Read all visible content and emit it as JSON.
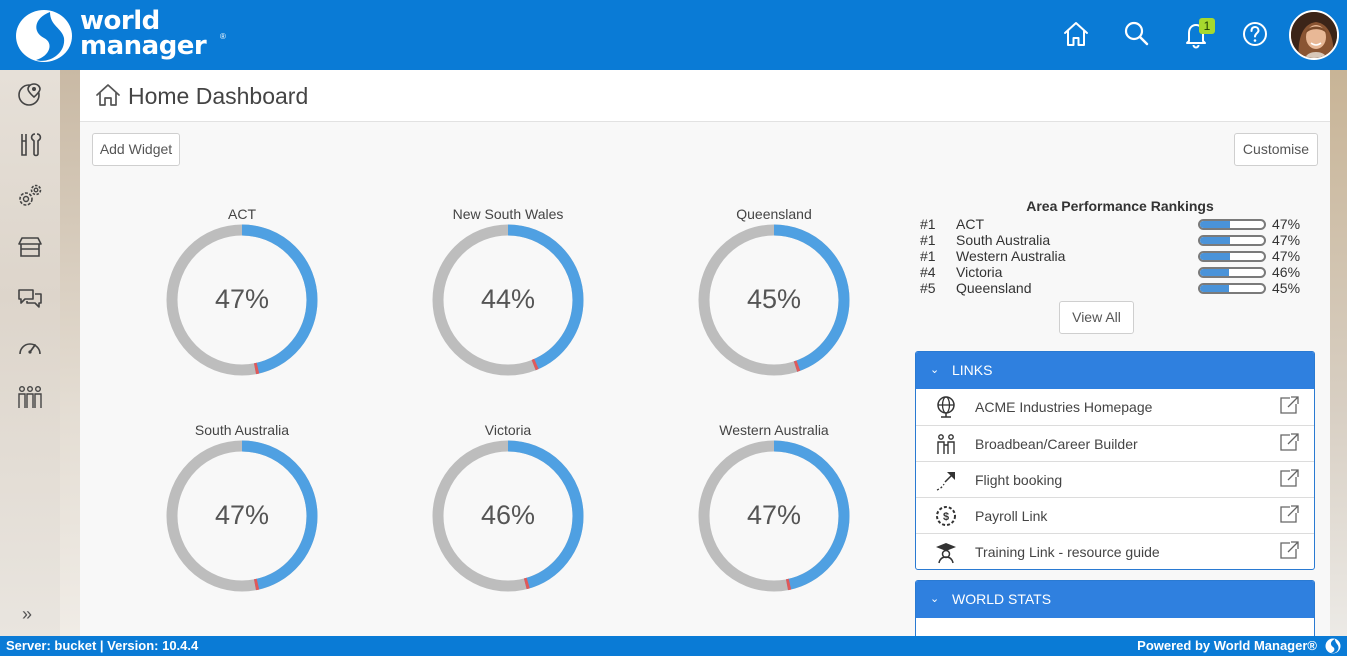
{
  "brand": {
    "line1": "world",
    "line2": "manager",
    "reg": "®",
    "primary": "#0a7bd6",
    "accent": "#4a9fe3"
  },
  "topbar": {
    "icons": [
      "home-icon",
      "search-icon",
      "bell-icon",
      "help-icon"
    ],
    "notification_count": "1"
  },
  "sidebar": {
    "icons": [
      "map-pin-icon",
      "tools-icon",
      "gears-icon",
      "store-icon",
      "chat-icon",
      "gauge-icon",
      "people-icon"
    ],
    "expand": "»"
  },
  "page": {
    "title": "Home Dashboard"
  },
  "actions": {
    "add_widget": "Add Widget",
    "customise": "Customise",
    "view_all": "View All"
  },
  "donuts": [
    {
      "label": "ACT",
      "value": 47,
      "display": "47%"
    },
    {
      "label": "New South Wales",
      "value": 44,
      "display": "44%"
    },
    {
      "label": "Queensland",
      "value": 45,
      "display": "45%"
    },
    {
      "label": "South Australia",
      "value": 47,
      "display": "47%"
    },
    {
      "label": "Victoria",
      "value": 46,
      "display": "46%"
    },
    {
      "label": "Western Australia",
      "value": 47,
      "display": "47%"
    }
  ],
  "rankings": {
    "title": "Area Performance Rankings",
    "rows": [
      {
        "rank": "#1",
        "name": "ACT",
        "value": 47,
        "pct": "47%"
      },
      {
        "rank": "#1",
        "name": "South Australia",
        "value": 47,
        "pct": "47%"
      },
      {
        "rank": "#1",
        "name": "Western Australia",
        "value": 47,
        "pct": "47%"
      },
      {
        "rank": "#4",
        "name": "Victoria",
        "value": 46,
        "pct": "46%"
      },
      {
        "rank": "#5",
        "name": "Queensland",
        "value": 45,
        "pct": "45%"
      }
    ]
  },
  "links": {
    "title": "LINKS",
    "items": [
      {
        "label": "ACME Industries Homepage",
        "icon": "globe-icon"
      },
      {
        "label": "Broadbean/Career Builder",
        "icon": "people-icon"
      },
      {
        "label": "Flight booking",
        "icon": "plane-icon"
      },
      {
        "label": "Payroll Link",
        "icon": "payroll-gear-icon"
      },
      {
        "label": "Training Link - resource guide",
        "icon": "graduate-icon"
      }
    ]
  },
  "world_stats": {
    "title": "WORLD STATS"
  },
  "footer": {
    "server": "Server: bucket |  Version: 10.4.4",
    "powered": "Powered by World Manager®"
  }
}
